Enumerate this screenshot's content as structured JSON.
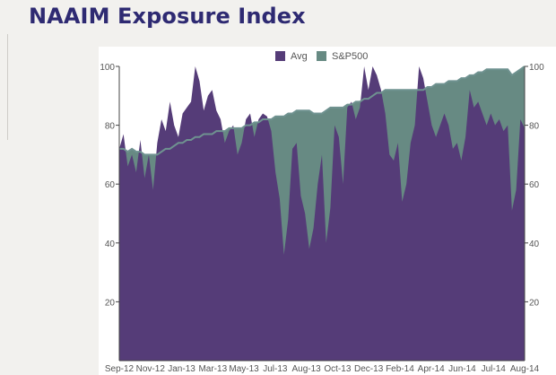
{
  "page": {
    "title": "NAAIM Exposure Index"
  },
  "chart_data": {
    "type": "area",
    "title": "NAAIM Exposure Index",
    "ylim": [
      0,
      100
    ],
    "y_ticks": [
      20,
      40,
      60,
      80,
      100
    ],
    "x_tick_labels": [
      "Sep-12",
      "Nov-12",
      "Jan-13",
      "Mar-13",
      "May-13",
      "Jul-13",
      "Aug-13",
      "Oct-13",
      "Dec-13",
      "Feb-14",
      "Apr-14",
      "Jun-14",
      "Jul-14",
      "Aug-14"
    ],
    "legend": {
      "position": "top",
      "entries": [
        "Avg",
        "S&P500"
      ]
    },
    "colors": {
      "Avg": "#553c78",
      "S&P500": "#678a83",
      "SP_line": "#6f9290"
    },
    "series": [
      {
        "name": "Avg",
        "values": [
          72,
          77,
          66,
          70,
          64,
          75,
          62,
          70,
          58,
          74,
          82,
          78,
          88,
          80,
          76,
          84,
          86,
          88,
          100,
          95,
          85,
          90,
          92,
          85,
          82,
          74,
          78,
          80,
          70,
          74,
          82,
          84,
          76,
          82,
          84,
          83,
          78,
          64,
          55,
          36,
          48,
          72,
          74,
          56,
          50,
          38,
          45,
          60,
          70,
          40,
          52,
          80,
          76,
          60,
          86,
          88,
          82,
          86,
          100,
          92,
          100,
          97,
          92,
          84,
          70,
          68,
          74,
          54,
          60,
          74,
          80,
          100,
          96,
          88,
          80,
          76,
          80,
          84,
          80,
          72,
          74,
          68,
          76,
          92,
          86,
          88,
          84,
          80,
          84,
          80,
          82,
          78,
          80,
          51,
          58,
          82,
          79
        ]
      },
      {
        "name": "S&P500",
        "values": [
          72,
          72,
          71,
          72,
          71,
          71,
          70,
          70,
          70,
          70,
          71,
          72,
          72,
          73,
          74,
          74,
          75,
          75,
          76,
          76,
          77,
          77,
          77,
          78,
          78,
          78,
          79,
          79,
          79,
          79,
          80,
          80,
          81,
          81,
          82,
          82,
          82,
          83,
          83,
          83,
          84,
          84,
          85,
          85,
          85,
          85,
          84,
          84,
          84,
          85,
          86,
          86,
          86,
          86,
          87,
          87,
          88,
          88,
          89,
          89,
          90,
          91,
          91,
          92,
          92,
          92,
          92,
          92,
          92,
          92,
          92,
          92,
          92,
          93,
          93,
          94,
          94,
          94,
          95,
          95,
          95,
          96,
          96,
          97,
          97,
          98,
          98,
          99,
          99,
          99,
          99,
          99,
          99,
          97,
          98,
          99,
          100
        ]
      }
    ]
  }
}
